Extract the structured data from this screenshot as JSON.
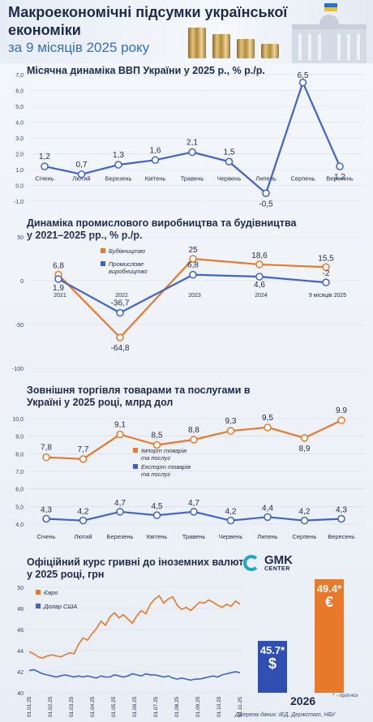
{
  "header": {
    "title": "Макроекономічні підсумки української економіки",
    "subtitle": "за 9 місяців 2025 року"
  },
  "chart_data": [
    {
      "id": "gdp",
      "type": "line",
      "title": "Місячна динаміка ВВП України у 2025 р., % р./р.",
      "categories": [
        "Січень",
        "Лютий",
        "Березень",
        "Квітень",
        "Травень",
        "Червень",
        "Липень",
        "Серпень",
        "Вересень"
      ],
      "values": [
        1.2,
        0.7,
        1.3,
        1.6,
        2.1,
        1.5,
        -0.5,
        6.5,
        1.2
      ],
      "value_labels": [
        "1,2",
        "0,7",
        "1,3",
        "1,6",
        "2,1",
        "1,5",
        "-0,5",
        "6,5",
        "1,2"
      ],
      "ylim": [
        -1,
        7
      ],
      "yticks": [
        -1,
        0,
        1,
        2,
        3,
        4,
        5,
        6,
        7
      ],
      "ytick_labels": [
        "-1,0",
        "0,0",
        "1,0",
        "2,0",
        "3,0",
        "4,0",
        "5,0",
        "6,0",
        "7,0"
      ],
      "color": "#3f63c9"
    },
    {
      "id": "industry",
      "type": "line",
      "title": "Динаміка промислового виробництва та будівництва у 2021–2025 рр., % р./р.",
      "categories": [
        "2021",
        "2022",
        "2023",
        "2024",
        "9 місяців 2025"
      ],
      "ylim": [
        -100,
        50
      ],
      "yticks": [
        -100,
        -50,
        0,
        50
      ],
      "ytick_labels": [
        "-100",
        "-50",
        "0",
        "50"
      ],
      "series": [
        {
          "name": "Будівництво",
          "values": [
            6.8,
            -64.8,
            25,
            18.6,
            15.5
          ],
          "labels": [
            "6,8",
            "-64,8",
            "25",
            "18,6",
            "15,5"
          ],
          "color": "#e8782a"
        },
        {
          "name": "Промислове виробництво",
          "values": [
            1.9,
            -36.7,
            6.8,
            4.6,
            -2
          ],
          "labels": [
            "1,9",
            "-36,7",
            "6,8",
            "4,6",
            "-2"
          ],
          "color": "#3f63c9"
        }
      ]
    },
    {
      "id": "trade",
      "type": "line",
      "title": "Зовнішня торгівля товарами та послугами в Україні у 2025 році, млрд дол",
      "categories": [
        "Січень",
        "Лютий",
        "Березень",
        "Квітень",
        "Травень",
        "Червень",
        "Липень",
        "Серпень",
        "Вересень"
      ],
      "ylim": [
        4,
        10
      ],
      "yticks": [
        4,
        5,
        6,
        7,
        8,
        9,
        10
      ],
      "ytick_labels": [
        "4,0",
        "5,0",
        "6,0",
        "7,0",
        "8,0",
        "9,0",
        "10,0"
      ],
      "series": [
        {
          "name": "Імпорт товарів та послуг",
          "values": [
            7.8,
            7.7,
            9.1,
            8.5,
            8.8,
            9.3,
            9.5,
            8.9,
            9.9
          ],
          "labels": [
            "7,8",
            "7,7",
            "9,1",
            "8,5",
            "8,8",
            "9,3",
            "9,5",
            "8,9",
            "9.9"
          ],
          "color": "#e8782a"
        },
        {
          "name": "Експорт товарів та послуг",
          "values": [
            4.3,
            4.2,
            4.7,
            4.5,
            4.7,
            4.2,
            4.4,
            4.2,
            4.3
          ],
          "labels": [
            "4,3",
            "4,2",
            "4,7",
            "4,5",
            "4,7",
            "4,2",
            "4,4",
            "4,2",
            "4,3"
          ],
          "color": "#3f63c9"
        }
      ]
    },
    {
      "id": "fx",
      "type": "line",
      "title": "Офіційний курс гривні до іноземних валют у 2025 році, грн",
      "x_tick_labels": [
        "01.01.25",
        "01.02.25",
        "01.03.25",
        "01.04.25",
        "01.05.25",
        "01.06.25",
        "01.07.25",
        "01.08.25",
        "01.09.25",
        "01.10.25",
        "01.11.25"
      ],
      "ylim": [
        40,
        50
      ],
      "yticks": [
        40,
        42,
        44,
        46,
        48,
        50
      ],
      "ytick_labels": [
        "40",
        "42",
        "44",
        "46",
        "48",
        "50"
      ],
      "series": [
        {
          "name": "Євро",
          "color": "#e8782a",
          "values": [
            43.9,
            43.7,
            43.4,
            43.3,
            43.5,
            43.6,
            43.5,
            43.4,
            43.6,
            43.8,
            43.7,
            44.6,
            45.2,
            45.0,
            45.6,
            46.1,
            46.8,
            46.4,
            47.2,
            47.6,
            47.1,
            47.4,
            47.0,
            46.6,
            47.3,
            47.8,
            47.5,
            48.4,
            48.9,
            49.2,
            48.5,
            48.9,
            49.1,
            48.3,
            47.9,
            48.1,
            47.8,
            48.2,
            48.6,
            48.5,
            48.8,
            48.6,
            48.3,
            48.1,
            48.4,
            48.2,
            48.7,
            48.4
          ]
        },
        {
          "name": "Долар США",
          "color": "#3f63c9",
          "values": [
            42.1,
            42.2,
            42.0,
            41.8,
            41.7,
            41.6,
            41.5,
            41.6,
            41.7,
            41.6,
            41.5,
            41.6,
            41.5,
            41.6,
            41.5,
            41.4,
            41.6,
            41.5,
            41.5,
            41.7,
            41.6,
            41.5,
            41.6,
            41.8,
            41.7,
            41.6,
            41.8,
            41.7,
            41.7,
            41.6,
            41.5,
            41.6,
            41.4,
            41.3,
            41.4,
            41.3,
            41.2,
            41.3,
            41.3,
            41.4,
            41.5,
            41.6,
            41.5,
            41.7,
            41.8,
            41.9,
            42.0,
            41.9
          ]
        }
      ],
      "forecast": {
        "year": "2026",
        "note": "* - прогноз",
        "usd": {
          "value": "45.7*",
          "symbol": "$"
        },
        "eur": {
          "value": "49.4*",
          "symbol": "€"
        }
      }
    }
  ],
  "footer": {
    "source": "Джерела даних: ІЕД, Держстат, НБУ"
  },
  "logo": {
    "name": "GMK",
    "tagline": "CENTER"
  }
}
